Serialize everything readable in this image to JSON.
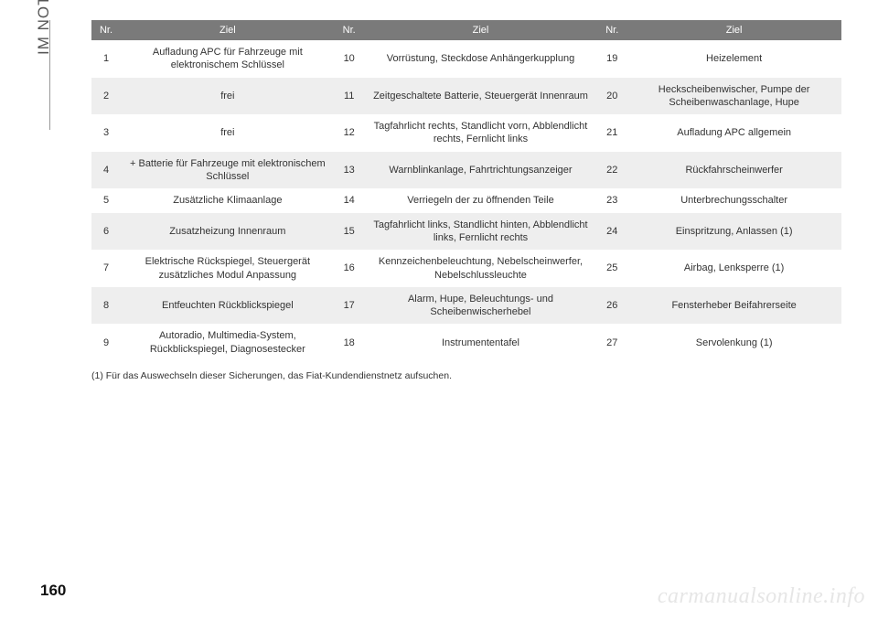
{
  "sidebar": {
    "label": "IM NOTFALL"
  },
  "page_number": "160",
  "watermark": "carmanualsonline.info",
  "footnote": "(1) Für das Auswechseln dieser Sicherungen, das Fiat-Kundendienstnetz aufsuchen.",
  "table": {
    "header_bg": "#7a7a7a",
    "header_fg": "#ffffff",
    "row_even_bg": "#eeeeee",
    "row_odd_bg": "#ffffff",
    "columns": [
      "Nr.",
      "Ziel",
      "Nr.",
      "Ziel",
      "Nr.",
      "Ziel"
    ],
    "rows": [
      [
        "1",
        "Aufladung APC für Fahrzeuge mit elektronischem Schlüssel",
        "10",
        "Vorrüstung, Steckdose Anhängerkupplung",
        "19",
        "Heizelement"
      ],
      [
        "2",
        "frei",
        "11",
        "Zeitgeschaltete Batterie, Steuergerät Innenraum",
        "20",
        "Heckscheibenwischer, Pumpe der Scheibenwaschanlage, Hupe"
      ],
      [
        "3",
        "frei",
        "12",
        "Tagfahrlicht rechts, Standlicht vorn, Abblendlicht rechts, Fernlicht links",
        "21",
        "Aufladung APC allgemein"
      ],
      [
        "4",
        "+ Batterie für Fahrzeuge mit elektronischem Schlüssel",
        "13",
        "Warnblinkanlage, Fahrtrichtungsanzeiger",
        "22",
        "Rückfahrscheinwerfer"
      ],
      [
        "5",
        "Zusätzliche Klimaanlage",
        "14",
        "Verriegeln der zu öffnenden Teile",
        "23",
        "Unterbrechungsschalter"
      ],
      [
        "6",
        "Zusatzheizung Innenraum",
        "15",
        "Tagfahrlicht links, Standlicht hinten, Abblendlicht links, Fernlicht rechts",
        "24",
        "Einspritzung, Anlassen (1)"
      ],
      [
        "7",
        "Elektrische Rückspiegel, Steuergerät zusätzliches Modul Anpassung",
        "16",
        "Kennzeichenbeleuchtung, Nebelscheinwerfer, Nebelschlussleuchte",
        "25",
        "Airbag, Lenksperre (1)"
      ],
      [
        "8",
        "Entfeuchten Rückblickspiegel",
        "17",
        "Alarm, Hupe, Beleuchtungs- und Scheibenwischerhebel",
        "26",
        "Fensterheber Beifahrerseite"
      ],
      [
        "9",
        "Autoradio, Multimedia-System, Rückblickspiegel, Diagnosestecker",
        "18",
        "Instrumententafel",
        "27",
        "Servolenkung (1)"
      ]
    ]
  }
}
